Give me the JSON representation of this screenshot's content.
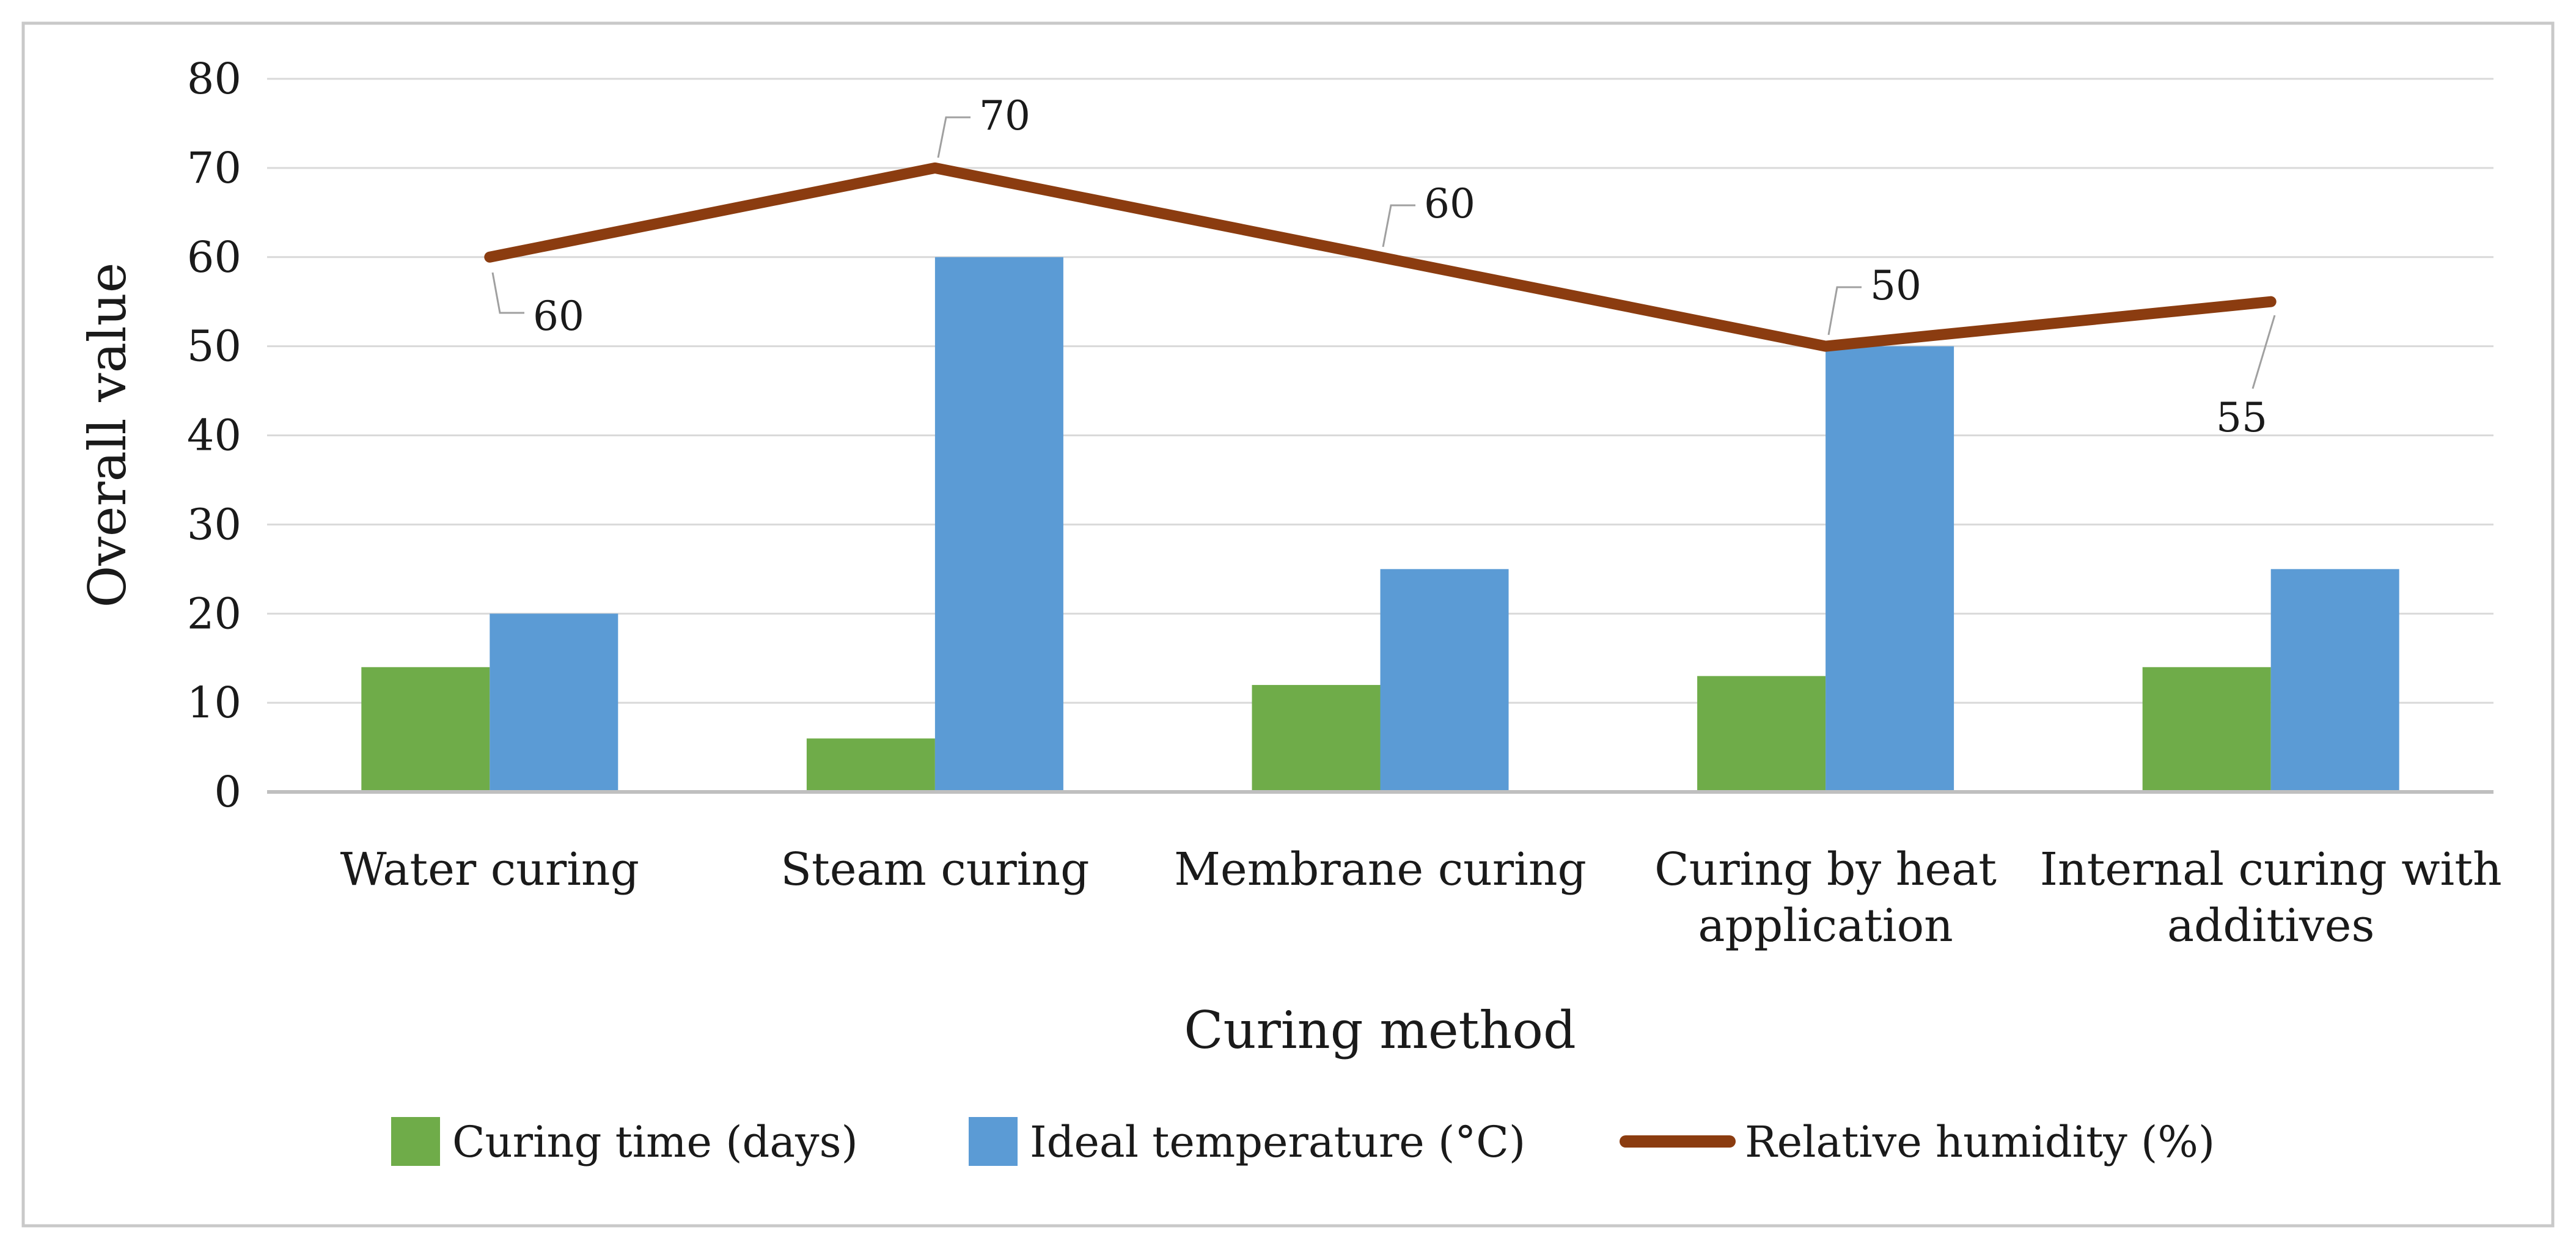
{
  "window": {
    "background": "#FFFFFF",
    "frame_border_color": "#C9C9C9"
  },
  "chart_data": {
    "type": "combo",
    "categories": [
      "Water curing",
      "Steam curing",
      "Membrane curing",
      "Curing by heat application",
      "Internal curing with additives"
    ],
    "series": [
      {
        "name": "Curing time (days)",
        "type": "bar",
        "color": "#6FAC49",
        "values": [
          14,
          6,
          12,
          13,
          14
        ]
      },
      {
        "name": "Ideal temperature (°C)",
        "type": "bar",
        "color": "#5B9BD5",
        "values": [
          20,
          60,
          25,
          50,
          25
        ]
      },
      {
        "name": "Relative humidity (%)",
        "type": "line",
        "color": "#8B3C10",
        "values": [
          60,
          70,
          60,
          50,
          55
        ],
        "data_labels": [
          "60",
          "70",
          "60",
          "50",
          "55"
        ]
      }
    ],
    "xlabel": "Curing method",
    "ylabel": "Overall value",
    "ylim": [
      0,
      80
    ],
    "ytick_step": 10,
    "yticks": [
      "0",
      "10",
      "20",
      "30",
      "40",
      "50",
      "60",
      "70",
      "80"
    ],
    "grid": "horizontal",
    "gridline_color": "#D9D9D9",
    "axis_line_color": "#BFBFBF",
    "leader_line_color": "#A0A0A0",
    "text_color": "#1A1A1A",
    "legend_position": "bottom"
  }
}
